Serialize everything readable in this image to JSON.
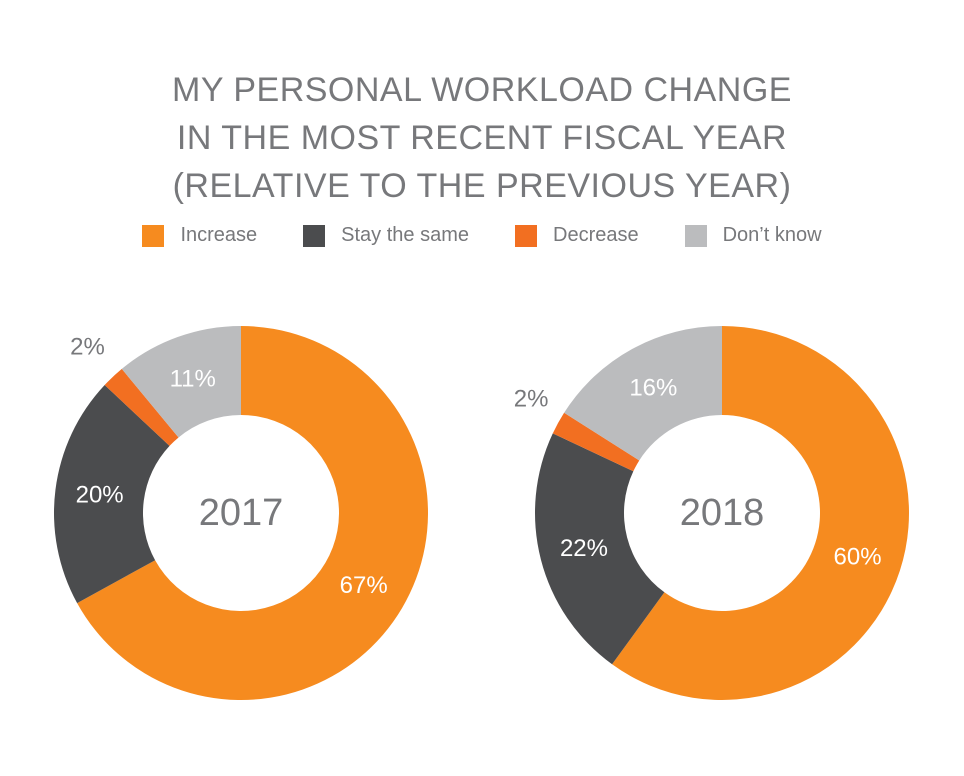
{
  "title_lines": [
    "MY PERSONAL WORKLOAD CHANGE",
    "IN THE MOST RECENT FISCAL YEAR",
    "(RELATIVE TO THE PREVIOUS YEAR)"
  ],
  "legend": [
    {
      "label": "Increase",
      "color": "#f68b1f"
    },
    {
      "label": "Stay the same",
      "color": "#4b4c4e"
    },
    {
      "label": "Decrease",
      "color": "#f26f21"
    },
    {
      "label": "Don’t know",
      "color": "#bbbcbe"
    }
  ],
  "chart_data": [
    {
      "type": "pie",
      "center_label": "2017",
      "categories": [
        "Increase",
        "Stay the same",
        "Decrease",
        "Don’t know"
      ],
      "values": [
        67,
        20,
        2,
        11
      ],
      "labels": [
        "67%",
        "20%",
        "2%",
        "11%"
      ]
    },
    {
      "type": "pie",
      "center_label": "2018",
      "categories": [
        "Increase",
        "Stay the same",
        "Decrease",
        "Don’t know"
      ],
      "values": [
        60,
        22,
        2,
        16
      ],
      "labels": [
        "60%",
        "22%",
        "2%",
        "16%"
      ]
    }
  ]
}
